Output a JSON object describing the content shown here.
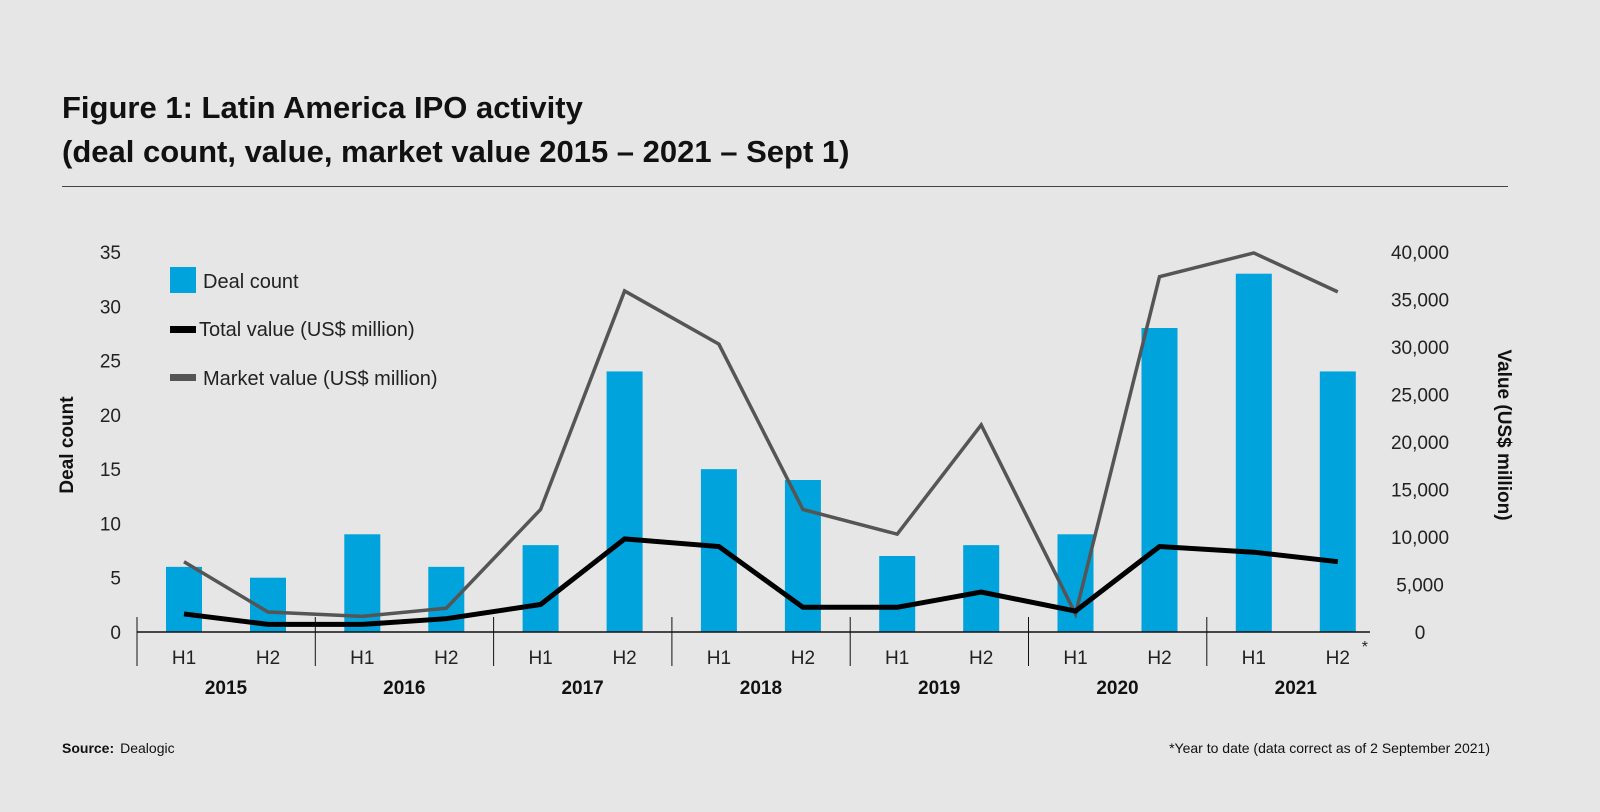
{
  "title_line1": "Figure 1: Latin America IPO activity",
  "title_line2": "(deal count, value, market value 2015 – 2021 – Sept 1)",
  "source_label": "Source:",
  "source_value": "Dealogic",
  "footnote": "*Year to date (data correct as of 2 September 2021)",
  "colors": {
    "bar": "#00a3dc",
    "total": "#000000",
    "market": "#555555",
    "background": "#e6e6e6"
  },
  "chart_data": {
    "type": "bar",
    "title": "Figure 1: Latin America IPO activity",
    "categories": [
      "H1",
      "H2",
      "H1",
      "H2",
      "H1",
      "H2",
      "H1",
      "H2",
      "H1",
      "H2",
      "H1",
      "H2",
      "H1",
      "H2"
    ],
    "years": [
      "2015",
      "2016",
      "2017",
      "2018",
      "2019",
      "2020",
      "2021"
    ],
    "last_category_marker": "*",
    "ylabel": "Deal count",
    "y2label": "Value (US$ million)",
    "ylim": [
      0,
      35
    ],
    "y2lim": [
      0,
      40000
    ],
    "yticks": [
      "0",
      "5",
      "10",
      "15",
      "20",
      "25",
      "30",
      "35"
    ],
    "y2ticks": [
      "0",
      "5,000",
      "10,000",
      "15,000",
      "20,000",
      "25,000",
      "30,000",
      "35,000",
      "40,000"
    ],
    "legend_placement": "top-left",
    "series": [
      {
        "name": "Deal count",
        "type": "bar",
        "axis": "left",
        "values": [
          6,
          5,
          9,
          6,
          8,
          24,
          15,
          14,
          7,
          8,
          9,
          28,
          33,
          24
        ]
      },
      {
        "name": "Total value (US$ million)",
        "type": "line",
        "axis": "right",
        "values": [
          1900,
          800,
          800,
          1400,
          2900,
          9800,
          9000,
          2600,
          2600,
          4200,
          2200,
          9000,
          8400,
          7400
        ]
      },
      {
        "name": "Market value (US$ million)",
        "type": "line",
        "axis": "right",
        "values": [
          7400,
          2100,
          1650,
          2500,
          12900,
          35900,
          30300,
          12900,
          10300,
          21800,
          1900,
          37400,
          39900,
          35800
        ]
      }
    ]
  }
}
